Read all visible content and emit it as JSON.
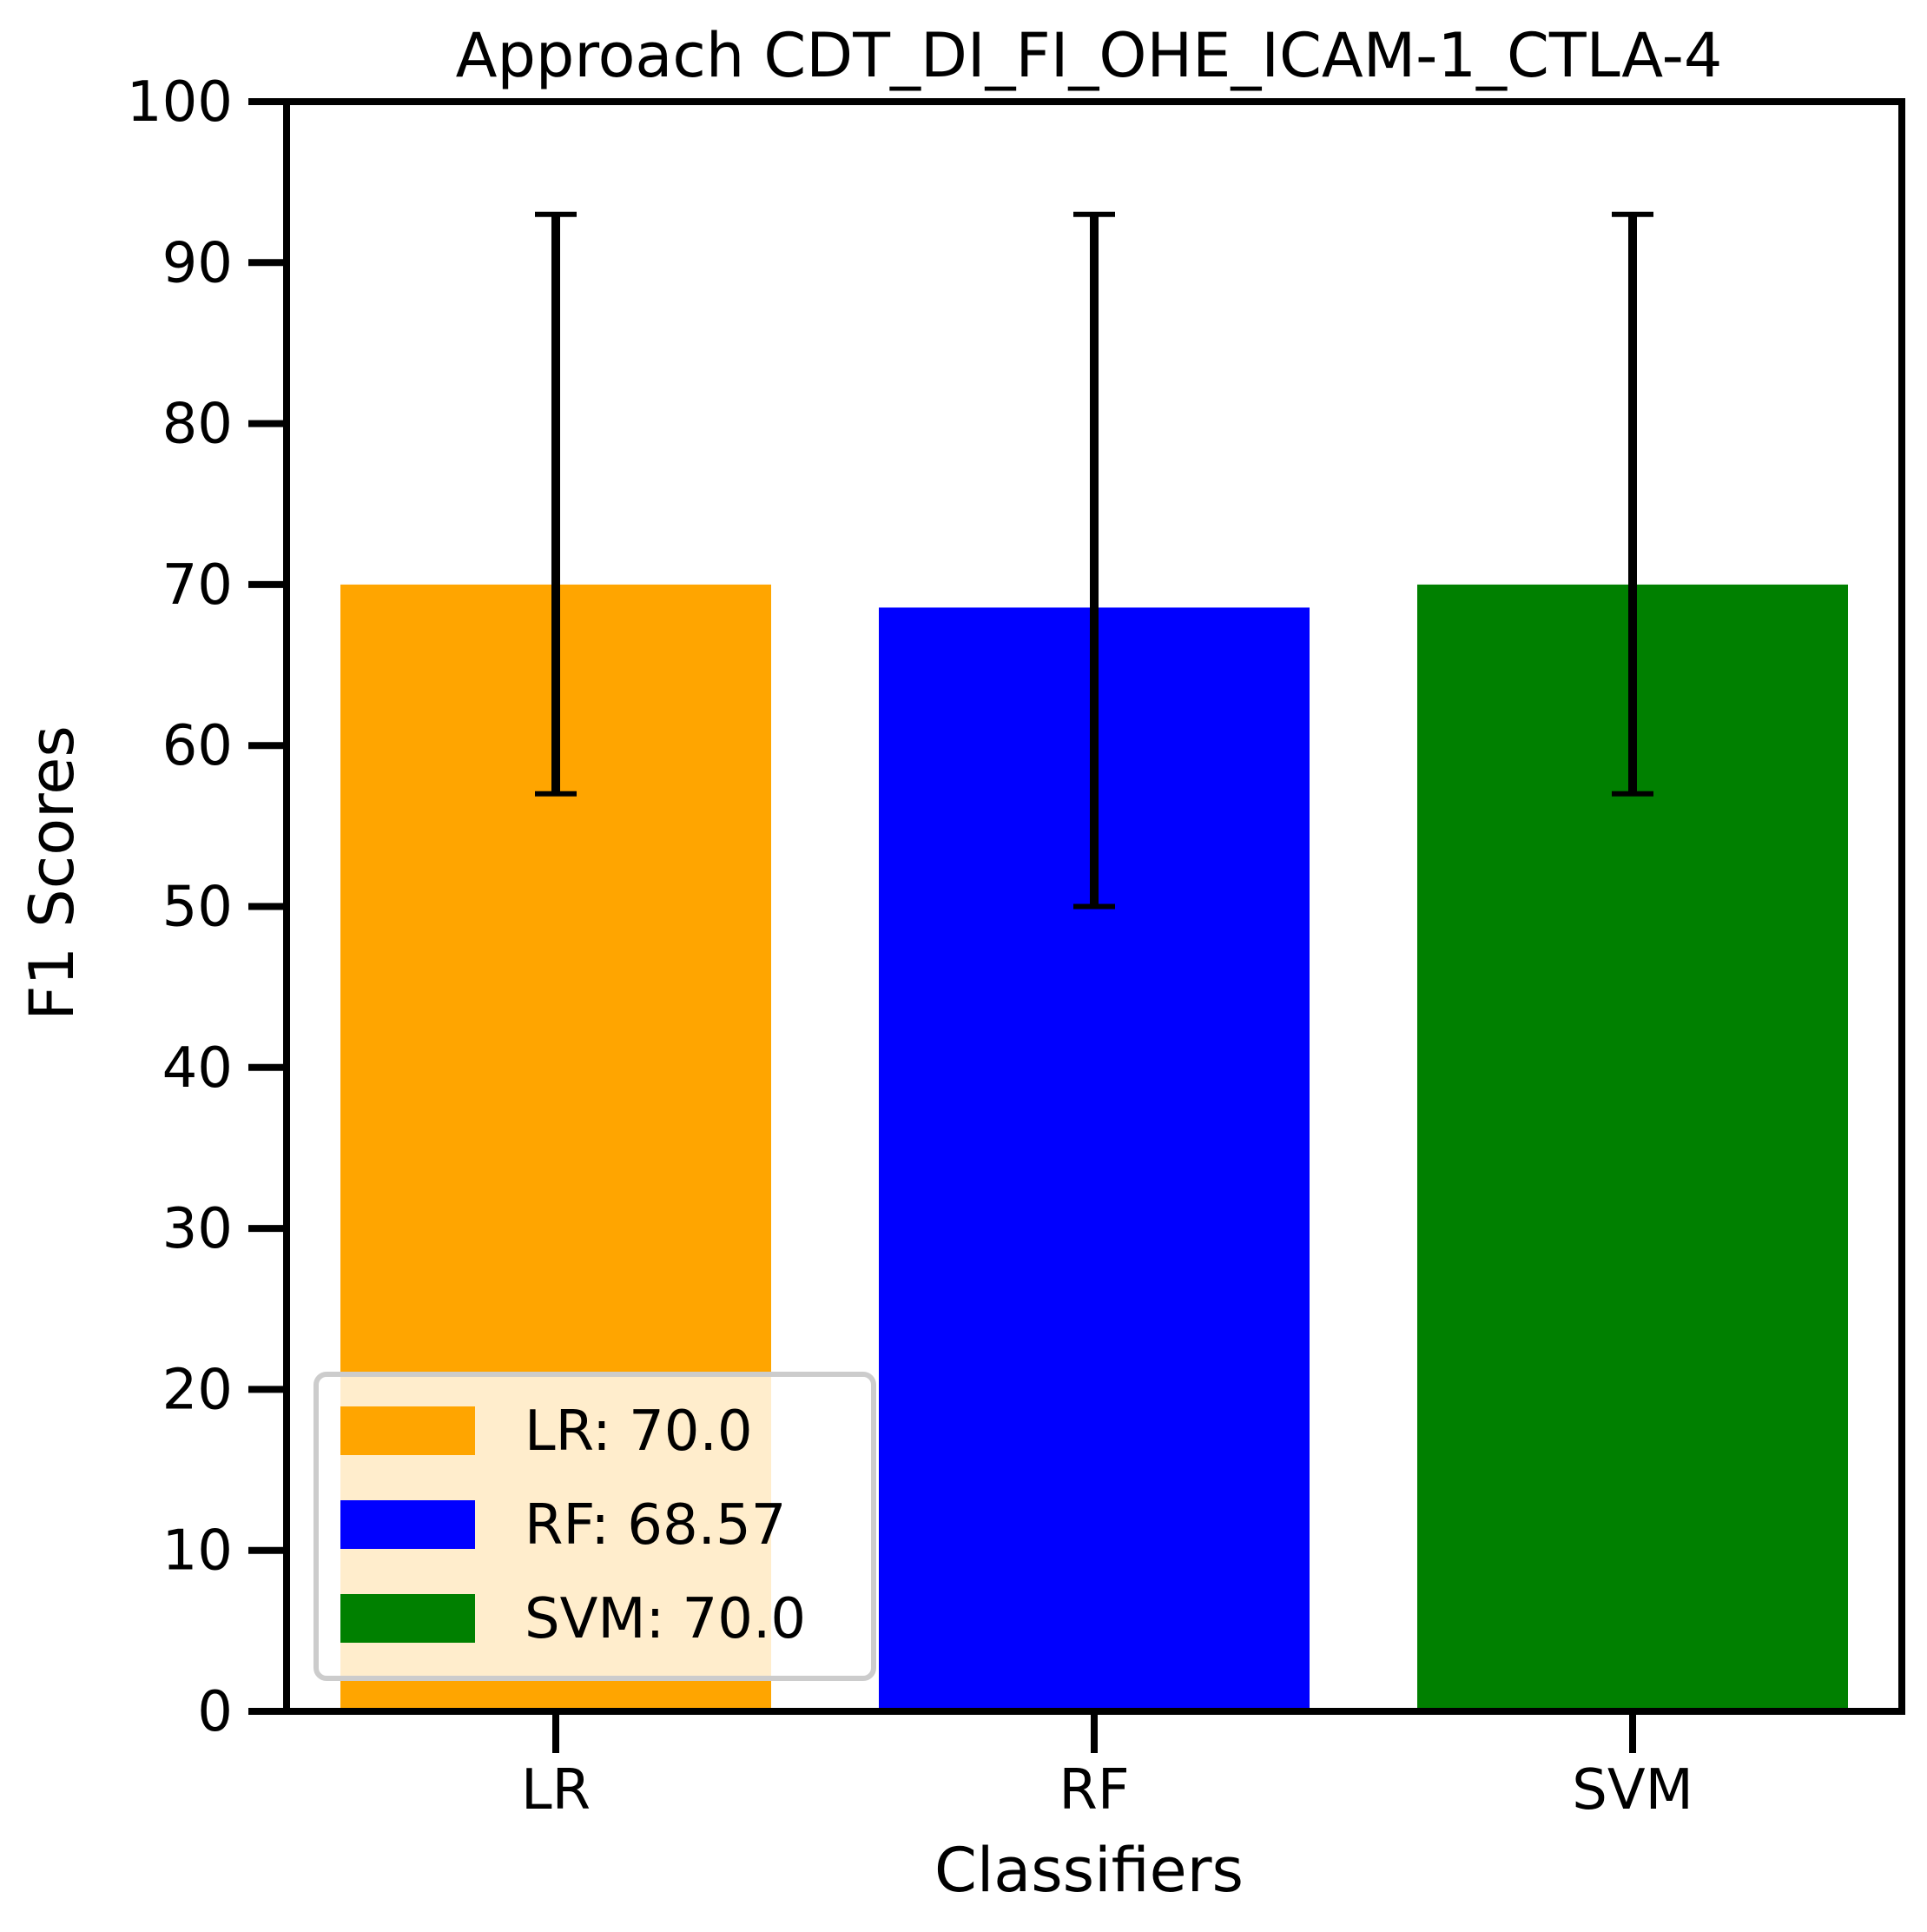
{
  "chart_data": {
    "type": "bar",
    "title": "Approach CDT_DI_FI_OHE_ICAM-1_CTLA-4",
    "xlabel": "Classifiers",
    "ylabel": "F1 Scores",
    "ylim": [
      0,
      100
    ],
    "yticks": [
      "0",
      "10",
      "20",
      "30",
      "40",
      "50",
      "60",
      "70",
      "80",
      "90",
      "100"
    ],
    "categories": [
      "LR",
      "RF",
      "SVM"
    ],
    "values": [
      70.0,
      68.57,
      70.0
    ],
    "error_low": [
      57.0,
      50.0,
      57.0
    ],
    "error_high": [
      93.0,
      93.0,
      93.0
    ],
    "colors": [
      "#FFA500",
      "#0000FF",
      "#008000"
    ],
    "legend": {
      "placement": "lower-left",
      "entries": [
        "LR: 70.0",
        "RF: 68.57",
        "SVM: 70.0"
      ]
    },
    "grid": false
  }
}
